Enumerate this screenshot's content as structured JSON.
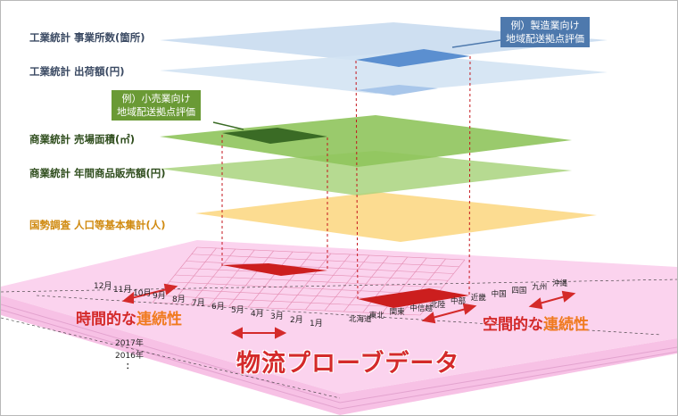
{
  "layers": [
    {
      "id": "office_count",
      "label": "工業統計 事業所数(箇所)"
    },
    {
      "id": "shipment",
      "label": "工業統計 出荷額(円)"
    },
    {
      "id": "sales_area",
      "label": "商業統計 売場面積(㎡)"
    },
    {
      "id": "annual_sales",
      "label": "商業統計 年間商品販売額(円)"
    },
    {
      "id": "census",
      "label": "国勢調査 人口等基本集計(人)"
    }
  ],
  "callouts": {
    "manufacturing_line1": "例）製造業向け",
    "manufacturing_line2": "地域配送拠点評価",
    "retail_line1": "例）小売業向け",
    "retail_line2": "地域配送拠点評価"
  },
  "base": {
    "title": "物流プローブデータ",
    "temporal_prefix": "時間的な",
    "temporal_highlight": "連続性",
    "spatial_prefix": "空間的な",
    "spatial_highlight": "連続性",
    "months": [
      "12月",
      "11月",
      "10月",
      "9月",
      "8月",
      "7月",
      "6月",
      "5月",
      "4月",
      "3月",
      "2月",
      "1月"
    ],
    "years": [
      "2017年",
      "2016年",
      "："
    ],
    "regions": [
      "北海道",
      "東北",
      "関東",
      "中信越",
      "北陸",
      "中部",
      "近畿",
      "中国",
      "四国",
      "九州",
      "沖縄"
    ]
  },
  "colors": {
    "blue_layer": "#c9dcf0",
    "green_layer": "#8fc45c",
    "yellow_layer": "#fbd67e",
    "pink_base": "#fbd3ee",
    "highlight_red": "#cc1e1e",
    "blue_highlight": "#5b8fd0",
    "dark_green_highlight": "#3a6b25",
    "callout_blue": "#4e79ad",
    "callout_green": "#6a9a35",
    "title_red": "#d42a2a",
    "accent_orange": "#f07a1e"
  }
}
